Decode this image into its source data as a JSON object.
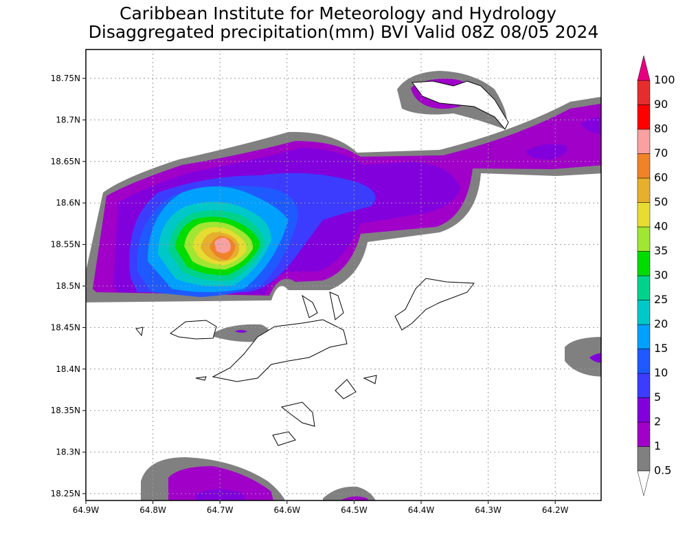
{
  "header": {
    "line1": "Caribbean Institute for Meteorology and Hydrology",
    "line2": "Disaggregated precipitation(mm) BVI Valid 08Z 08/05 2024"
  },
  "map": {
    "lat_labels": [
      "18.75N",
      "18.7N",
      "18.65N",
      "18.6N",
      "18.55N",
      "18.5N",
      "18.45N",
      "18.4N",
      "18.35N",
      "18.3N",
      "18.25N"
    ],
    "lon_labels": [
      "64.9W",
      "64.8W",
      "64.7W",
      "64.6W",
      "64.5W",
      "64.4W",
      "64.3W",
      "64.2W"
    ]
  },
  "colorbar": {
    "levels": [
      0.5,
      1,
      2,
      5,
      10,
      15,
      20,
      25,
      30,
      35,
      40,
      50,
      60,
      70,
      80,
      90,
      100
    ],
    "under_color": "#ffffff",
    "colors": [
      "#808080",
      "#a000c8",
      "#8200dc",
      "#3c3cff",
      "#1e5aff",
      "#00a0ff",
      "#00c8c8",
      "#00d28c",
      "#00dc00",
      "#a0e632",
      "#e6dc32",
      "#e6af2d",
      "#f08228",
      "#faa0a0",
      "#ff0000",
      "#e62d2d"
    ],
    "over_color": "#e6007f"
  }
}
